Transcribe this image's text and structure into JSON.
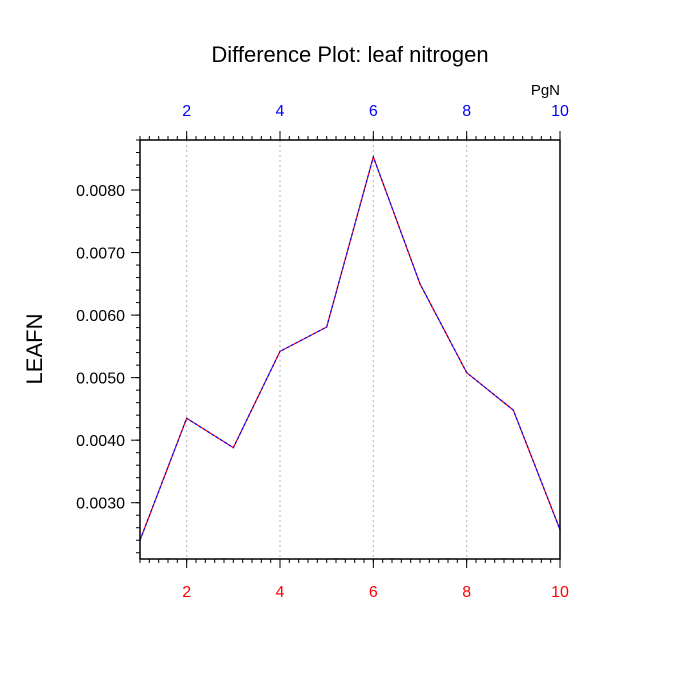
{
  "chart_data": {
    "type": "line",
    "title": "Difference Plot: leaf nitrogen",
    "ylabel": "LEAFN",
    "top_axis_unit": "PgN",
    "x": [
      1,
      2,
      3,
      4,
      5,
      6,
      7,
      8,
      9,
      10
    ],
    "series": [
      {
        "values": [
          0.0024,
          0.00435,
          0.00388,
          0.00542,
          0.00581,
          0.00853,
          0.0065,
          0.00508,
          0.00448,
          0.00257
        ]
      }
    ],
    "xlim": [
      1,
      10
    ],
    "ylim": [
      0.0021,
      0.0088
    ],
    "x_ticks": [
      2,
      4,
      6,
      8,
      10
    ],
    "x_tick_labels": [
      "2",
      "4",
      "6",
      "8",
      "10"
    ],
    "y_ticks": [
      0.003,
      0.004,
      0.005,
      0.006,
      0.007,
      0.008
    ],
    "y_tick_labels": [
      "0.0030",
      "0.0040",
      "0.0050",
      "0.0060",
      "0.0070",
      "0.0080"
    ],
    "grid": "vertical dotted at major x ticks",
    "colors": {
      "bottom_tick_labels": "#ff0000",
      "top_tick_labels": "#0000ff",
      "line_primary": "#ff0000",
      "line_overlay": "#0000ff",
      "grid": "#b3b3b3",
      "frame": "#000000"
    }
  }
}
